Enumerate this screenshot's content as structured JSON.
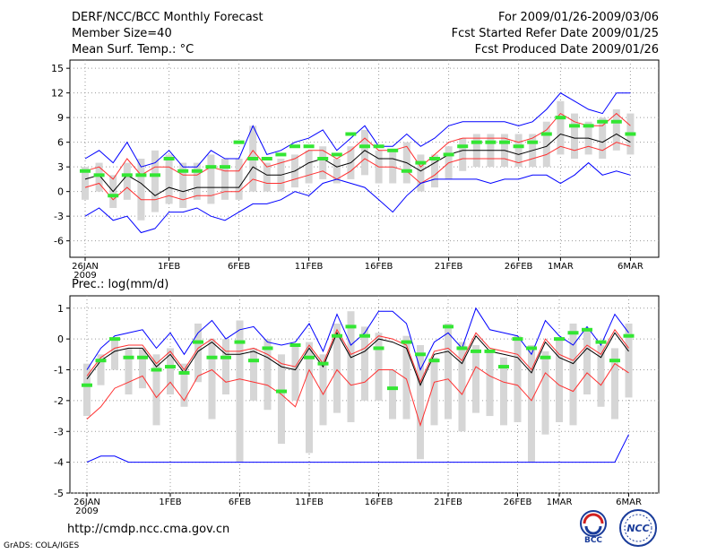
{
  "header": {
    "title": "DERF/NCC/BCC Monthly Forecast",
    "member_size": "Member Size=40",
    "variable": "Mean Surf. Temp.: °C",
    "period": "For 2009/01/26-2009/03/06",
    "started": "Fcst Started Refer Date 2009/01/25",
    "produced": "Fcst Produced Date 2009/01/26"
  },
  "footer": {
    "url": "http://cmdp.ncc.cma.gov.cn",
    "credit": "GrADS: COLA/IGES",
    "logo_bcc": "BCC",
    "logo_ncc": "NCC"
  },
  "colors": {
    "box": "#d6d6d6",
    "median": "#000000",
    "mean": "#ff3030",
    "extreme": "#0000ff",
    "ensemble": "#33e633",
    "grid": "#9a9a9a"
  },
  "chart_data": [
    {
      "type": "line",
      "title": "Mean Surf. Temp.: °C",
      "ylim": [
        -8,
        16
      ],
      "yticks": [
        -6,
        -3,
        0,
        3,
        6,
        9,
        12,
        15
      ],
      "xticks": [
        {
          "day": 0,
          "label": "26JAN"
        },
        {
          "day": 6,
          "label": "1FEB"
        },
        {
          "day": 11,
          "label": "6FEB"
        },
        {
          "day": 16,
          "label": "11FEB"
        },
        {
          "day": 21,
          "label": "16FEB"
        },
        {
          "day": 26,
          "label": "21FEB"
        },
        {
          "day": 31,
          "label": "26FEB"
        },
        {
          "day": 34,
          "label": "1MAR"
        },
        {
          "day": 39,
          "label": "6MAR"
        }
      ],
      "year_label": "2009",
      "series": [
        {
          "name": "max",
          "values": [
            4,
            5,
            3.5,
            6,
            3,
            3.5,
            5,
            3,
            3,
            5,
            4,
            4,
            8,
            4.5,
            5,
            6,
            6.5,
            7.5,
            5,
            6.5,
            8,
            5.5,
            5.5,
            7,
            5.5,
            6.5,
            8,
            8.5,
            8.5,
            8.5,
            8.5,
            8,
            8.5,
            10,
            12,
            11,
            10,
            9.5,
            12,
            12
          ]
        },
        {
          "name": "upper",
          "values": [
            2.5,
            3,
            1.5,
            4,
            2,
            3,
            3,
            2,
            2,
            3,
            2.5,
            2.5,
            5,
            3,
            3.5,
            4,
            5,
            5,
            4,
            5,
            6.5,
            5,
            5,
            5.5,
            3,
            4.5,
            6,
            6.5,
            6.5,
            6.5,
            6.5,
            6,
            6.5,
            7.5,
            9.5,
            8.5,
            8,
            8,
            9.5,
            8
          ]
        },
        {
          "name": "median",
          "values": [
            1.5,
            2,
            0,
            2,
            1,
            -0.5,
            0.5,
            0,
            0.5,
            0.5,
            0.5,
            0.5,
            3,
            2,
            2,
            2.5,
            3.5,
            4,
            3,
            3.5,
            5,
            4,
            4,
            3.5,
            2.5,
            3.5,
            4.5,
            5,
            5,
            5,
            5,
            4.5,
            5,
            5.5,
            7,
            6.5,
            6.5,
            6,
            7,
            6
          ]
        },
        {
          "name": "lower",
          "values": [
            0.5,
            1,
            -1,
            0.5,
            -1,
            -1,
            -0.5,
            -1,
            -0.5,
            -0.5,
            0,
            0,
            1.5,
            1,
            1,
            1.5,
            2,
            2.5,
            1.5,
            2.5,
            4,
            3,
            3,
            2.5,
            1,
            2,
            3.5,
            4,
            4,
            4,
            4,
            3.5,
            4,
            4.5,
            5.5,
            5,
            5.5,
            5,
            6,
            5.5
          ]
        },
        {
          "name": "min",
          "values": [
            -3,
            -2,
            -3.5,
            -3,
            -5,
            -4.5,
            -2.5,
            -2.5,
            -2,
            -3,
            -3.5,
            -2.5,
            -1.5,
            -1.5,
            -1,
            0,
            -0.5,
            1,
            1.5,
            1,
            0.5,
            -1,
            -2.5,
            -0.5,
            1,
            1.5,
            1.5,
            1.5,
            1.5,
            1,
            1.5,
            1.5,
            2,
            2,
            1,
            2,
            3.5,
            2,
            2.5,
            2
          ]
        },
        {
          "name": "ensemble_mean",
          "values": [
            2.5,
            2,
            -0.5,
            2,
            2,
            2,
            4,
            2.5,
            2.5,
            3,
            3,
            6,
            4,
            4,
            4.5,
            5.5,
            5.5,
            4,
            4.5,
            7,
            5.5,
            5.5,
            5,
            2.5,
            3.5,
            4,
            4.5,
            5.5,
            6,
            6,
            6,
            5.5,
            6,
            7,
            9,
            8,
            8,
            8.5,
            8.5,
            7
          ]
        }
      ],
      "box_low": [
        -1,
        0,
        -2,
        -1,
        -3.5,
        -2.5,
        -1.5,
        -2,
        -1,
        -1.5,
        -1,
        -1,
        0,
        0,
        0,
        0.5,
        1,
        1.5,
        1,
        1.5,
        2,
        1,
        1,
        1,
        0,
        0.5,
        1.5,
        2.5,
        3,
        3,
        3,
        3,
        3,
        3,
        4.5,
        4,
        4.5,
        4,
        5,
        4.5
      ],
      "box_high": [
        3,
        3.5,
        2,
        3.5,
        4,
        5,
        4.5,
        3.5,
        3.5,
        4.5,
        4,
        4,
        8,
        3.5,
        4,
        4.5,
        5,
        5.5,
        4,
        5.5,
        7.5,
        5,
        5,
        6,
        4.5,
        4.5,
        5.5,
        6.5,
        7,
        7,
        7,
        7,
        7,
        8.5,
        11,
        9.5,
        8.5,
        9,
        10,
        9.5
      ]
    },
    {
      "type": "line",
      "title": "Prec.: log(mm/d)",
      "ylim": [
        -5,
        1.4
      ],
      "yticks": [
        -5,
        -4,
        -3,
        -2,
        -1,
        0,
        1
      ],
      "xticks": [
        {
          "day": 0,
          "label": "26JAN"
        },
        {
          "day": 6,
          "label": "1FEB"
        },
        {
          "day": 11,
          "label": "6FEB"
        },
        {
          "day": 16,
          "label": "11FEB"
        },
        {
          "day": 21,
          "label": "16FEB"
        },
        {
          "day": 26,
          "label": "21FEB"
        },
        {
          "day": 31,
          "label": "26FEB"
        },
        {
          "day": 34,
          "label": "1MAR"
        },
        {
          "day": 39,
          "label": "6MAR"
        }
      ],
      "year_label": "2009",
      "series": [
        {
          "name": "max",
          "values": [
            -1,
            -0.3,
            0.1,
            0.2,
            0.3,
            -0.3,
            0.2,
            -0.5,
            0.2,
            0.6,
            0,
            0.3,
            0.4,
            -0.1,
            -0.2,
            -0.1,
            0.5,
            -0.4,
            0.8,
            -0.2,
            0.2,
            0.9,
            0.9,
            0.5,
            -1,
            -0.1,
            0.2,
            -0.3,
            1,
            0.3,
            0.2,
            0.1,
            -0.5,
            0.6,
            0.1,
            -0.2,
            0.4,
            -0.2,
            0.8,
            0.2
          ]
        },
        {
          "name": "upper",
          "values": [
            -1.2,
            -0.6,
            -0.3,
            -0.2,
            -0.2,
            -0.8,
            -0.4,
            -1,
            -0.3,
            0,
            -0.4,
            -0.4,
            -0.3,
            -0.5,
            -0.8,
            -0.9,
            -0.2,
            -0.8,
            0.3,
            -0.5,
            -0.3,
            0.1,
            0,
            -0.2,
            -1.4,
            -0.4,
            -0.3,
            -0.7,
            0.2,
            -0.3,
            -0.4,
            -0.5,
            -1,
            0,
            -0.5,
            -0.7,
            -0.2,
            -0.5,
            0.3,
            -0.3
          ]
        },
        {
          "name": "median",
          "values": [
            -1.3,
            -0.7,
            -0.4,
            -0.3,
            -0.3,
            -0.9,
            -0.5,
            -1.1,
            -0.4,
            -0.1,
            -0.5,
            -0.5,
            -0.4,
            -0.6,
            -0.9,
            -1,
            -0.3,
            -0.9,
            0.2,
            -0.6,
            -0.4,
            0,
            -0.1,
            -0.3,
            -1.5,
            -0.5,
            -0.4,
            -0.8,
            0.1,
            -0.4,
            -0.5,
            -0.6,
            -1.1,
            -0.1,
            -0.6,
            -0.8,
            -0.3,
            -0.6,
            0.2,
            -0.4
          ]
        },
        {
          "name": "lower",
          "values": [
            -2.6,
            -2.2,
            -1.6,
            -1.4,
            -1.2,
            -1.9,
            -1.4,
            -2,
            -1.2,
            -1,
            -1.4,
            -1.3,
            -1.4,
            -1.5,
            -1.8,
            -2.2,
            -1,
            -1.8,
            -1,
            -1.5,
            -1.4,
            -1,
            -1,
            -1.3,
            -2.8,
            -1.4,
            -1.3,
            -1.8,
            -0.9,
            -1.2,
            -1.4,
            -1.5,
            -2,
            -1.1,
            -1.5,
            -1.7,
            -1.1,
            -1.5,
            -0.8,
            -1.1
          ]
        },
        {
          "name": "min",
          "values": [
            -4,
            -3.8,
            -3.8,
            -4,
            -4,
            -4,
            -4,
            -4,
            -4,
            -4,
            -4,
            -4,
            -4,
            -4,
            -4,
            -4,
            -4,
            -4,
            -4,
            -4,
            -4,
            -4,
            -4,
            -4,
            -4,
            -4,
            -4,
            -4,
            -4,
            -4,
            -4,
            -4,
            -4,
            -4,
            -4,
            -4,
            -4,
            -4,
            -4,
            -3.1
          ]
        },
        {
          "name": "ensemble_mean",
          "values": [
            -1.5,
            -0.7,
            0,
            -0.6,
            -0.6,
            -1,
            -0.9,
            -1.1,
            -0.1,
            -0.6,
            -0.6,
            -0.1,
            -0.7,
            -0.3,
            -1.7,
            -0.2,
            -0.6,
            -0.8,
            0.1,
            0.4,
            0.1,
            -0.3,
            -1.6,
            -0.1,
            -0.5,
            -0.7,
            0.4,
            -0.3,
            -0.4,
            -0.4,
            -0.9,
            0,
            -0.3,
            -0.6,
            0,
            0.2,
            0.3,
            -0.1,
            -0.7,
            0.1
          ]
        }
      ],
      "box_low": [
        -2.5,
        -1.5,
        -1,
        -1.8,
        -1.6,
        -2.8,
        -1.8,
        -2.2,
        -1.4,
        -2.6,
        -1.8,
        -4,
        -2,
        -2.3,
        -3.4,
        -2,
        -3.7,
        -2.8,
        -2.4,
        -2.7,
        -2,
        -2,
        -2.6,
        -2.6,
        -3.9,
        -2.8,
        -2.6,
        -3,
        -2.4,
        -2.5,
        -2.8,
        -2.7,
        -4,
        -3.1,
        -2.7,
        -2.8,
        -1.8,
        -2.2,
        -2.6,
        -1.9
      ],
      "box_high": [
        -0.8,
        -0.5,
        0,
        -0.3,
        -0.3,
        -0.5,
        -0.3,
        -0.8,
        0.5,
        0,
        0,
        0.6,
        -0.3,
        0,
        -0.5,
        -0.2,
        -0.1,
        -0.5,
        0.5,
        0.9,
        0.4,
        0.2,
        -1,
        0.1,
        -0.2,
        -0.6,
        0.5,
        -0.1,
        -0.2,
        -0.4,
        -0.6,
        0.1,
        -0.2,
        -0.4,
        0,
        0.5,
        0.3,
        -0.2,
        -0.3,
        0.5
      ]
    }
  ]
}
